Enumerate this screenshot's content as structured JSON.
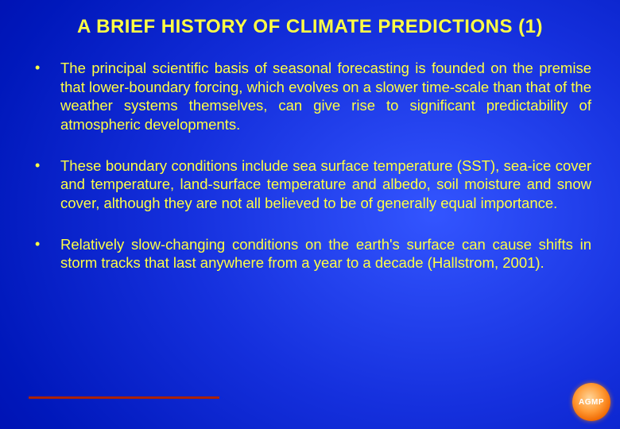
{
  "slide": {
    "title": "A BRIEF HISTORY OF CLIMATE PREDICTIONS (1)",
    "title_color": "#ffff44",
    "title_fontsize": 24,
    "bullets": [
      "The principal scientific basis of seasonal forecasting is founded on the premise that lower-boundary forcing, which evolves on a slower time-scale than that of the weather systems themselves, can give rise to significant predictability of atmospheric developments.",
      "These boundary conditions include sea surface temperature (SST), sea-ice cover and temperature, land-surface temperature and albedo, soil moisture and snow cover, although they are not all believed to be of generally equal importance.",
      "Relatively slow-changing conditions on the earth's surface can cause shifts in storm tracks that last anywhere from a year to a decade (Hallstrom, 2001)."
    ],
    "bullet_color": "#ffff44",
    "bullet_fontsize": 18.5,
    "background_gradient_center": "#3355ff",
    "background_gradient_edge": "#000099",
    "underline_color": "#aa2200",
    "badge": {
      "label": "AGMP",
      "gradient_inner": "#ffd599",
      "gradient_outer": "#dd4400",
      "text_color": "#ffffff"
    }
  }
}
